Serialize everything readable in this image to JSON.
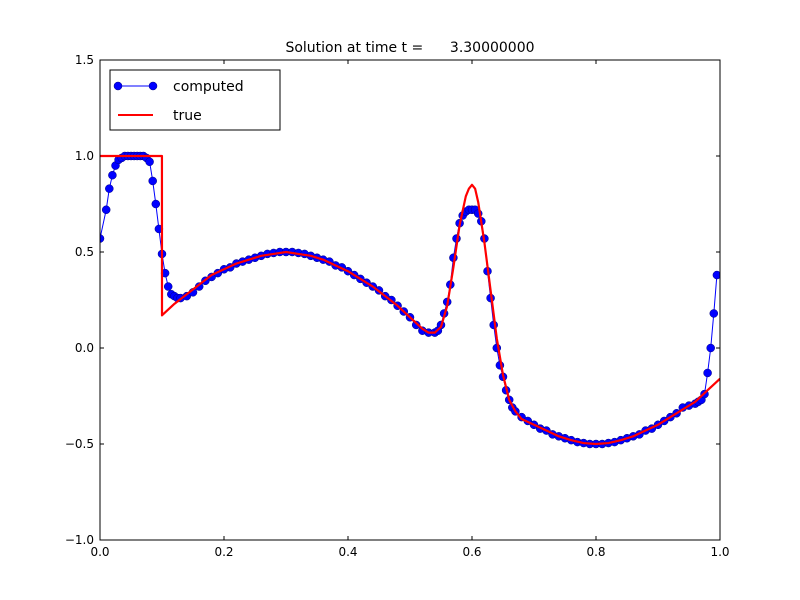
{
  "chart_data": {
    "type": "line",
    "title": "Solution at time t =      3.30000000",
    "xlabel": "",
    "ylabel": "",
    "xlim": [
      0.0,
      1.0
    ],
    "ylim": [
      -1.0,
      1.5
    ],
    "x_ticks": [
      "0.0",
      "0.2",
      "0.4",
      "0.6",
      "0.8",
      "1.0"
    ],
    "y_ticks": [
      "−1.0",
      "−0.5",
      "0.0",
      "0.5",
      "1.0",
      "1.5"
    ],
    "legend": {
      "placement": "top-left",
      "entries": [
        "computed",
        "true"
      ]
    },
    "series": [
      {
        "name": "computed",
        "style": "line+markers",
        "color": "#0000ff",
        "points": [
          [
            0.0,
            0.57
          ],
          [
            0.01,
            0.72
          ],
          [
            0.015,
            0.83
          ],
          [
            0.02,
            0.9
          ],
          [
            0.025,
            0.95
          ],
          [
            0.03,
            0.98
          ],
          [
            0.035,
            0.99
          ],
          [
            0.04,
            1.0
          ],
          [
            0.045,
            1.0
          ],
          [
            0.05,
            1.0
          ],
          [
            0.055,
            1.0
          ],
          [
            0.06,
            1.0
          ],
          [
            0.065,
            1.0
          ],
          [
            0.07,
            1.0
          ],
          [
            0.075,
            0.99
          ],
          [
            0.08,
            0.97
          ],
          [
            0.085,
            0.87
          ],
          [
            0.09,
            0.75
          ],
          [
            0.095,
            0.62
          ],
          [
            0.1,
            0.49
          ],
          [
            0.105,
            0.39
          ],
          [
            0.11,
            0.32
          ],
          [
            0.115,
            0.28
          ],
          [
            0.12,
            0.27
          ],
          [
            0.125,
            0.26
          ],
          [
            0.13,
            0.26
          ],
          [
            0.14,
            0.27
          ],
          [
            0.15,
            0.29
          ],
          [
            0.16,
            0.32
          ],
          [
            0.17,
            0.35
          ],
          [
            0.18,
            0.37
          ],
          [
            0.19,
            0.39
          ],
          [
            0.2,
            0.41
          ],
          [
            0.21,
            0.42
          ],
          [
            0.22,
            0.44
          ],
          [
            0.23,
            0.45
          ],
          [
            0.24,
            0.46
          ],
          [
            0.25,
            0.47
          ],
          [
            0.26,
            0.48
          ],
          [
            0.27,
            0.49
          ],
          [
            0.28,
            0.495
          ],
          [
            0.29,
            0.5
          ],
          [
            0.3,
            0.5
          ],
          [
            0.31,
            0.5
          ],
          [
            0.32,
            0.495
          ],
          [
            0.33,
            0.49
          ],
          [
            0.34,
            0.48
          ],
          [
            0.35,
            0.47
          ],
          [
            0.36,
            0.46
          ],
          [
            0.37,
            0.45
          ],
          [
            0.38,
            0.43
          ],
          [
            0.39,
            0.42
          ],
          [
            0.4,
            0.4
          ],
          [
            0.41,
            0.38
          ],
          [
            0.42,
            0.36
          ],
          [
            0.43,
            0.34
          ],
          [
            0.44,
            0.32
          ],
          [
            0.45,
            0.3
          ],
          [
            0.46,
            0.27
          ],
          [
            0.47,
            0.25
          ],
          [
            0.48,
            0.22
          ],
          [
            0.49,
            0.19
          ],
          [
            0.5,
            0.16
          ],
          [
            0.51,
            0.12
          ],
          [
            0.52,
            0.09
          ],
          [
            0.53,
            0.08
          ],
          [
            0.54,
            0.08
          ],
          [
            0.545,
            0.09
          ],
          [
            0.55,
            0.12
          ],
          [
            0.555,
            0.18
          ],
          [
            0.56,
            0.24
          ],
          [
            0.565,
            0.33
          ],
          [
            0.57,
            0.47
          ],
          [
            0.575,
            0.57
          ],
          [
            0.58,
            0.65
          ],
          [
            0.585,
            0.69
          ],
          [
            0.59,
            0.71
          ],
          [
            0.595,
            0.72
          ],
          [
            0.6,
            0.72
          ],
          [
            0.605,
            0.72
          ],
          [
            0.61,
            0.7
          ],
          [
            0.615,
            0.66
          ],
          [
            0.62,
            0.57
          ],
          [
            0.625,
            0.4
          ],
          [
            0.63,
            0.26
          ],
          [
            0.635,
            0.12
          ],
          [
            0.64,
            0.0
          ],
          [
            0.645,
            -0.09
          ],
          [
            0.65,
            -0.15
          ],
          [
            0.655,
            -0.22
          ],
          [
            0.66,
            -0.27
          ],
          [
            0.665,
            -0.31
          ],
          [
            0.67,
            -0.33
          ],
          [
            0.68,
            -0.36
          ],
          [
            0.69,
            -0.38
          ],
          [
            0.7,
            -0.4
          ],
          [
            0.71,
            -0.42
          ],
          [
            0.72,
            -0.43
          ],
          [
            0.73,
            -0.45
          ],
          [
            0.74,
            -0.46
          ],
          [
            0.75,
            -0.47
          ],
          [
            0.76,
            -0.48
          ],
          [
            0.77,
            -0.49
          ],
          [
            0.78,
            -0.495
          ],
          [
            0.79,
            -0.5
          ],
          [
            0.8,
            -0.5
          ],
          [
            0.81,
            -0.5
          ],
          [
            0.82,
            -0.495
          ],
          [
            0.83,
            -0.49
          ],
          [
            0.84,
            -0.48
          ],
          [
            0.85,
            -0.47
          ],
          [
            0.86,
            -0.46
          ],
          [
            0.87,
            -0.45
          ],
          [
            0.88,
            -0.43
          ],
          [
            0.89,
            -0.42
          ],
          [
            0.9,
            -0.4
          ],
          [
            0.91,
            -0.38
          ],
          [
            0.92,
            -0.36
          ],
          [
            0.93,
            -0.34
          ],
          [
            0.94,
            -0.31
          ],
          [
            0.95,
            -0.3
          ],
          [
            0.96,
            -0.29
          ],
          [
            0.965,
            -0.28
          ],
          [
            0.97,
            -0.27
          ],
          [
            0.975,
            -0.24
          ],
          [
            0.98,
            -0.13
          ],
          [
            0.985,
            0.0
          ],
          [
            0.99,
            0.18
          ],
          [
            0.995,
            0.38
          ]
        ]
      },
      {
        "name": "true",
        "style": "line",
        "color": "#ff0000",
        "points": [
          [
            0.0,
            1.0
          ],
          [
            0.0999,
            1.0
          ],
          [
            0.1,
            0.17
          ],
          [
            0.12,
            0.23
          ],
          [
            0.14,
            0.28
          ],
          [
            0.16,
            0.33
          ],
          [
            0.18,
            0.38
          ],
          [
            0.2,
            0.41
          ],
          [
            0.22,
            0.44
          ],
          [
            0.24,
            0.46
          ],
          [
            0.26,
            0.48
          ],
          [
            0.28,
            0.49
          ],
          [
            0.3,
            0.5
          ],
          [
            0.32,
            0.49
          ],
          [
            0.34,
            0.48
          ],
          [
            0.36,
            0.46
          ],
          [
            0.38,
            0.43
          ],
          [
            0.4,
            0.4
          ],
          [
            0.42,
            0.36
          ],
          [
            0.44,
            0.32
          ],
          [
            0.46,
            0.27
          ],
          [
            0.48,
            0.22
          ],
          [
            0.5,
            0.16
          ],
          [
            0.52,
            0.1
          ],
          [
            0.53,
            0.08
          ],
          [
            0.54,
            0.08
          ],
          [
            0.55,
            0.11
          ],
          [
            0.56,
            0.22
          ],
          [
            0.57,
            0.42
          ],
          [
            0.58,
            0.64
          ],
          [
            0.59,
            0.79
          ],
          [
            0.595,
            0.83
          ],
          [
            0.6,
            0.85
          ],
          [
            0.605,
            0.83
          ],
          [
            0.61,
            0.76
          ],
          [
            0.62,
            0.55
          ],
          [
            0.63,
            0.3
          ],
          [
            0.64,
            0.05
          ],
          [
            0.65,
            -0.14
          ],
          [
            0.66,
            -0.27
          ],
          [
            0.67,
            -0.33
          ],
          [
            0.68,
            -0.37
          ],
          [
            0.7,
            -0.4
          ],
          [
            0.72,
            -0.43
          ],
          [
            0.74,
            -0.46
          ],
          [
            0.76,
            -0.48
          ],
          [
            0.78,
            -0.495
          ],
          [
            0.8,
            -0.5
          ],
          [
            0.82,
            -0.495
          ],
          [
            0.84,
            -0.48
          ],
          [
            0.86,
            -0.46
          ],
          [
            0.88,
            -0.43
          ],
          [
            0.9,
            -0.4
          ],
          [
            0.92,
            -0.36
          ],
          [
            0.94,
            -0.32
          ],
          [
            0.96,
            -0.28
          ],
          [
            0.98,
            -0.22
          ],
          [
            1.0,
            -0.16
          ]
        ]
      }
    ]
  }
}
